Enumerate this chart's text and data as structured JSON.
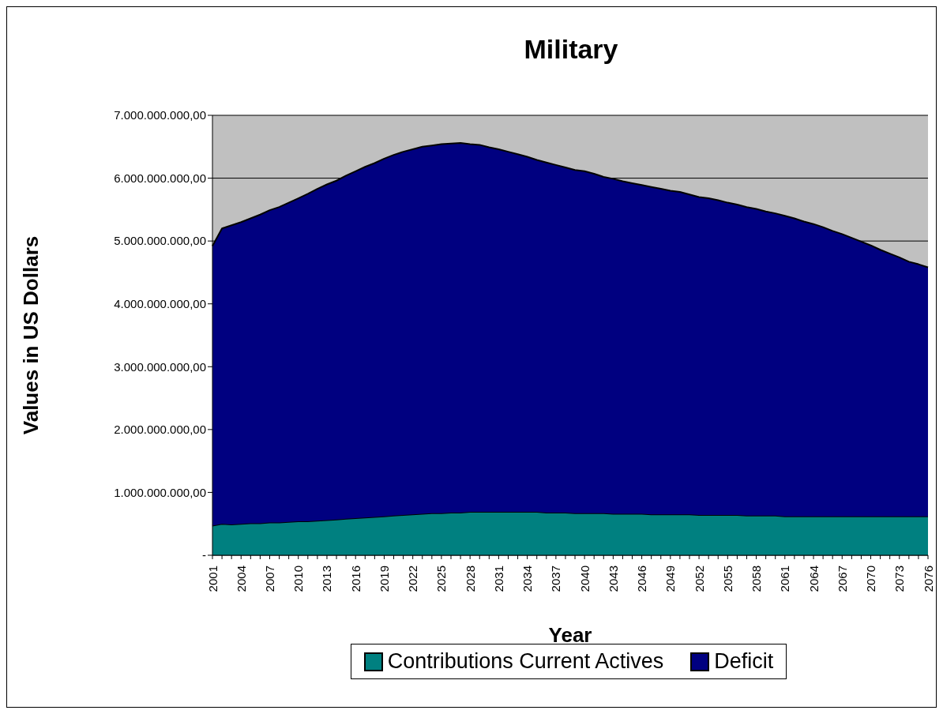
{
  "chart_data": {
    "type": "area",
    "stacked": true,
    "title": "Military",
    "xlabel": "Year",
    "ylabel": "Values in US Dollars",
    "categories": [
      "2001",
      null,
      null,
      "2004",
      null,
      null,
      "2007",
      null,
      null,
      "2010",
      null,
      null,
      "2013",
      null,
      null,
      "2016",
      null,
      null,
      "2019",
      null,
      null,
      "2022",
      null,
      null,
      "2025",
      null,
      null,
      "2028",
      null,
      null,
      "2031",
      null,
      null,
      "2034",
      null,
      null,
      "2037",
      null,
      null,
      "2040",
      null,
      null,
      "2043",
      null,
      null,
      "2046",
      null,
      null,
      "2049",
      null,
      null,
      "2052",
      null,
      null,
      "2055",
      null,
      null,
      "2058",
      null,
      null,
      "2061",
      null,
      null,
      "2064",
      null,
      null,
      "2067",
      null,
      null,
      "2070",
      null,
      null,
      "2073",
      null,
      null,
      "2076"
    ],
    "series": [
      {
        "name": "Contributions Current Actives",
        "color": "#008080",
        "values": [
          470000000,
          500000000,
          490000000,
          500000000,
          510000000,
          510000000,
          520000000,
          520000000,
          530000000,
          540000000,
          540000000,
          550000000,
          560000000,
          570000000,
          580000000,
          590000000,
          600000000,
          610000000,
          620000000,
          630000000,
          640000000,
          650000000,
          660000000,
          670000000,
          670000000,
          680000000,
          680000000,
          690000000,
          690000000,
          690000000,
          690000000,
          690000000,
          690000000,
          690000000,
          690000000,
          680000000,
          680000000,
          680000000,
          670000000,
          670000000,
          670000000,
          670000000,
          660000000,
          660000000,
          660000000,
          660000000,
          650000000,
          650000000,
          650000000,
          650000000,
          650000000,
          640000000,
          640000000,
          640000000,
          640000000,
          640000000,
          630000000,
          630000000,
          630000000,
          630000000,
          620000000,
          620000000,
          620000000,
          620000000,
          620000000,
          620000000,
          620000000,
          620000000,
          620000000,
          620000000,
          620000000,
          620000000,
          620000000,
          620000000,
          620000000,
          620000000
        ]
      },
      {
        "name": "Deficit",
        "color": "#000080",
        "values": [
          4450000000,
          4700000000,
          4760000000,
          4800000000,
          4850000000,
          4910000000,
          4970000000,
          5020000000,
          5080000000,
          5140000000,
          5210000000,
          5280000000,
          5340000000,
          5390000000,
          5460000000,
          5520000000,
          5580000000,
          5630000000,
          5690000000,
          5740000000,
          5780000000,
          5810000000,
          5840000000,
          5850000000,
          5870000000,
          5870000000,
          5880000000,
          5850000000,
          5840000000,
          5800000000,
          5770000000,
          5730000000,
          5690000000,
          5650000000,
          5600000000,
          5570000000,
          5530000000,
          5490000000,
          5460000000,
          5440000000,
          5400000000,
          5350000000,
          5330000000,
          5290000000,
          5260000000,
          5230000000,
          5210000000,
          5180000000,
          5150000000,
          5130000000,
          5090000000,
          5060000000,
          5040000000,
          5010000000,
          4970000000,
          4940000000,
          4910000000,
          4880000000,
          4840000000,
          4810000000,
          4780000000,
          4740000000,
          4690000000,
          4650000000,
          4600000000,
          4540000000,
          4490000000,
          4430000000,
          4370000000,
          4310000000,
          4240000000,
          4180000000,
          4120000000,
          4050000000,
          4010000000,
          3960000000
        ]
      }
    ],
    "ylim": [
      0,
      7000000000
    ],
    "yticks": [
      {
        "value": 0,
        "label": "-"
      },
      {
        "value": 1000000000,
        "label": "1.000.000.000,00"
      },
      {
        "value": 2000000000,
        "label": "2.000.000.000,00"
      },
      {
        "value": 3000000000,
        "label": "3.000.000.000,00"
      },
      {
        "value": 4000000000,
        "label": "4.000.000.000,00"
      },
      {
        "value": 5000000000,
        "label": "5.000.000.000,00"
      },
      {
        "value": 6000000000,
        "label": "6.000.000.000,00"
      },
      {
        "value": 7000000000,
        "label": "7.000.000.000,00"
      }
    ],
    "grid": "y",
    "legend": "bottom"
  }
}
